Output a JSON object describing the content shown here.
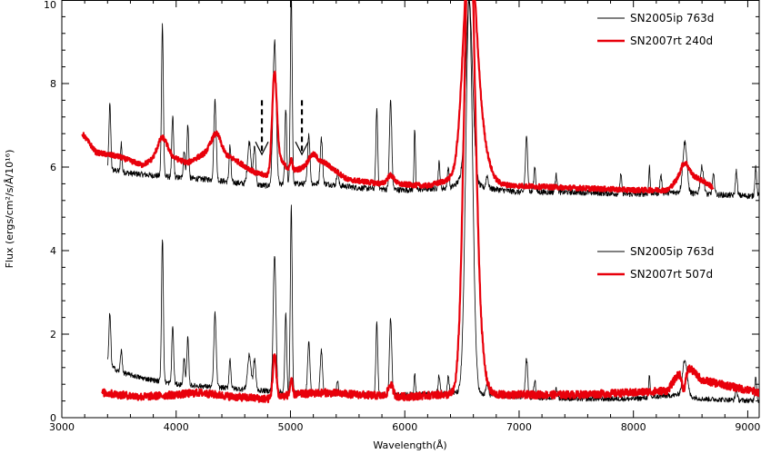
{
  "chart_data": {
    "type": "line",
    "title": "",
    "xlabel": "Wavelength(Å)",
    "ylabel": "Flux (ergs/cm²/s/Å/10¹⁶)",
    "xlim": [
      3000,
      9100
    ],
    "ylim": [
      0,
      10
    ],
    "x_ticks": [
      3000,
      4000,
      5000,
      6000,
      7000,
      8000,
      9000
    ],
    "y_ticks": [
      0,
      2,
      4,
      6,
      8,
      10
    ],
    "grid": false,
    "colors": {
      "black_series": "#000000",
      "red_series": "#e8000b"
    },
    "legends": [
      {
        "position": "top-right",
        "entries": [
          {
            "label": "SN2005ip 763d",
            "color": "#000000"
          },
          {
            "label": "SN2007rt 240d",
            "color": "#e8000b"
          }
        ]
      },
      {
        "position": "middle-right",
        "entries": [
          {
            "label": "SN2005ip 763d",
            "color": "#000000"
          },
          {
            "label": "SN2007rt 507d",
            "color": "#e8000b"
          }
        ]
      }
    ],
    "annotations": [
      {
        "type": "dashed-arrow-down",
        "x": 4750,
        "y_top": 7.6,
        "y_tip": 6.3
      },
      {
        "type": "dashed-arrow-down",
        "x": 5100,
        "y_top": 7.6,
        "y_tip": 6.3
      }
    ],
    "series": [
      {
        "color": "#000000",
        "width": 0.8,
        "baseline": [
          [
            3400,
            5.95
          ],
          [
            3600,
            5.85
          ],
          [
            4000,
            5.75
          ],
          [
            4300,
            5.7
          ],
          [
            4600,
            5.6
          ],
          [
            4800,
            5.55
          ],
          [
            5000,
            5.6
          ],
          [
            5300,
            5.6
          ],
          [
            5600,
            5.5
          ],
          [
            6000,
            5.45
          ],
          [
            6400,
            5.5
          ],
          [
            6500,
            5.7
          ],
          [
            6700,
            5.5
          ],
          [
            7000,
            5.4
          ],
          [
            7500,
            5.4
          ],
          [
            8000,
            5.35
          ],
          [
            8400,
            5.4
          ],
          [
            8600,
            5.35
          ],
          [
            9100,
            5.3
          ]
        ],
        "lines": [
          [
            3420,
            7.5,
            8
          ],
          [
            3520,
            6.6,
            6
          ],
          [
            3880,
            9.4,
            8
          ],
          [
            3970,
            7.2,
            8
          ],
          [
            4070,
            6.4,
            8
          ],
          [
            4102,
            7.0,
            8
          ],
          [
            4340,
            7.6,
            10
          ],
          [
            4471,
            6.5,
            8
          ],
          [
            4640,
            6.6,
            15
          ],
          [
            4686,
            6.5,
            10
          ],
          [
            4861,
            9.0,
            14
          ],
          [
            4959,
            7.4,
            8
          ],
          [
            5007,
            10.2,
            8
          ],
          [
            5160,
            6.8,
            10
          ],
          [
            5270,
            6.7,
            10
          ],
          [
            5412,
            5.9,
            8
          ],
          [
            5755,
            7.4,
            8
          ],
          [
            5876,
            7.6,
            10
          ],
          [
            6087,
            6.9,
            6
          ],
          [
            6300,
            6.1,
            8
          ],
          [
            6380,
            6.0,
            8
          ],
          [
            6563,
            10.0,
            30
          ],
          [
            6720,
            5.8,
            10
          ],
          [
            7065,
            6.7,
            10
          ],
          [
            7137,
            6.0,
            8
          ],
          [
            7325,
            5.8,
            10
          ],
          [
            7890,
            5.8,
            8
          ],
          [
            8140,
            6.0,
            6
          ],
          [
            8240,
            5.8,
            8
          ],
          [
            8450,
            6.6,
            18
          ],
          [
            8600,
            6.0,
            15
          ],
          [
            8700,
            5.8,
            10
          ],
          [
            8900,
            5.9,
            8
          ],
          [
            9070,
            6.0,
            8
          ]
        ],
        "noise": 0.07,
        "x_start": 3400,
        "x_end": 9100
      },
      {
        "color": "#e8000b",
        "width": 2.2,
        "baseline": [
          [
            3180,
            6.8
          ],
          [
            3300,
            6.35
          ],
          [
            3500,
            6.25
          ],
          [
            3700,
            6.05
          ],
          [
            3900,
            6.3
          ],
          [
            4100,
            6.1
          ],
          [
            4300,
            6.4
          ],
          [
            4500,
            6.2
          ],
          [
            4700,
            5.85
          ],
          [
            4800,
            5.8
          ],
          [
            4900,
            6.2
          ],
          [
            5000,
            5.9
          ],
          [
            5300,
            6.1
          ],
          [
            5500,
            5.7
          ],
          [
            5800,
            5.6
          ],
          [
            5900,
            5.6
          ],
          [
            6200,
            5.55
          ],
          [
            6400,
            5.7
          ],
          [
            6700,
            5.6
          ],
          [
            7000,
            5.55
          ],
          [
            7500,
            5.5
          ],
          [
            8000,
            5.45
          ],
          [
            8300,
            5.45
          ],
          [
            8450,
            5.9
          ],
          [
            8650,
            5.6
          ],
          [
            8700,
            5.5
          ]
        ],
        "lines": [
          [
            3880,
            6.7,
            40
          ],
          [
            4350,
            6.8,
            40
          ],
          [
            4861,
            8.3,
            20
          ],
          [
            5007,
            6.2,
            10
          ],
          [
            5200,
            6.3,
            40
          ],
          [
            5876,
            5.8,
            30
          ],
          [
            6563,
            10.0,
            55
          ],
          [
            6620,
            7.2,
            80
          ],
          [
            8450,
            6.1,
            30
          ]
        ],
        "noise": 0.06,
        "x_start": 3180,
        "x_end": 8700
      },
      {
        "color": "#000000",
        "width": 0.8,
        "baseline": [
          [
            3400,
            1.3
          ],
          [
            3500,
            1.1
          ],
          [
            3700,
            0.95
          ],
          [
            4000,
            0.8
          ],
          [
            4500,
            0.7
          ],
          [
            5000,
            0.6
          ],
          [
            5500,
            0.55
          ],
          [
            6000,
            0.55
          ],
          [
            6400,
            0.6
          ],
          [
            6700,
            0.55
          ],
          [
            7000,
            0.5
          ],
          [
            7500,
            0.45
          ],
          [
            8000,
            0.45
          ],
          [
            8400,
            0.55
          ],
          [
            8600,
            0.45
          ],
          [
            9100,
            0.4
          ]
        ],
        "lines": [
          [
            3420,
            2.5,
            8
          ],
          [
            3520,
            1.6,
            8
          ],
          [
            3880,
            4.3,
            8
          ],
          [
            3970,
            2.2,
            8
          ],
          [
            4070,
            1.4,
            8
          ],
          [
            4102,
            1.9,
            8
          ],
          [
            4340,
            2.5,
            10
          ],
          [
            4471,
            1.4,
            8
          ],
          [
            4640,
            1.5,
            15
          ],
          [
            4686,
            1.4,
            10
          ],
          [
            4861,
            3.9,
            12
          ],
          [
            4959,
            2.5,
            8
          ],
          [
            5007,
            5.1,
            8
          ],
          [
            5160,
            1.8,
            10
          ],
          [
            5270,
            1.6,
            10
          ],
          [
            5412,
            0.9,
            8
          ],
          [
            5755,
            2.3,
            8
          ],
          [
            5876,
            2.4,
            10
          ],
          [
            6087,
            1.1,
            6
          ],
          [
            6300,
            1.0,
            8
          ],
          [
            6380,
            1.0,
            8
          ],
          [
            6563,
            10.0,
            30
          ],
          [
            6720,
            0.8,
            10
          ],
          [
            7065,
            1.4,
            10
          ],
          [
            7137,
            0.9,
            8
          ],
          [
            7325,
            0.7,
            10
          ],
          [
            8140,
            1.0,
            6
          ],
          [
            8450,
            1.4,
            20
          ],
          [
            8900,
            0.7,
            8
          ],
          [
            9070,
            1.0,
            8
          ]
        ],
        "noise": 0.06,
        "x_start": 3400,
        "x_end": 9100
      },
      {
        "color": "#e8000b",
        "width": 2.2,
        "baseline": [
          [
            3350,
            0.6
          ],
          [
            3500,
            0.55
          ],
          [
            3700,
            0.5
          ],
          [
            4000,
            0.55
          ],
          [
            4200,
            0.6
          ],
          [
            4500,
            0.5
          ],
          [
            4800,
            0.45
          ],
          [
            5000,
            0.55
          ],
          [
            5300,
            0.6
          ],
          [
            5600,
            0.55
          ],
          [
            6000,
            0.5
          ],
          [
            6300,
            0.55
          ],
          [
            6700,
            0.55
          ],
          [
            7000,
            0.55
          ],
          [
            7500,
            0.55
          ],
          [
            8000,
            0.6
          ],
          [
            8300,
            0.65
          ],
          [
            8450,
            1.3
          ],
          [
            8600,
            0.9
          ],
          [
            9100,
            0.6
          ]
        ],
        "lines": [
          [
            4861,
            1.5,
            15
          ],
          [
            5007,
            0.9,
            10
          ],
          [
            5876,
            0.8,
            20
          ],
          [
            6563,
            10.0,
            45
          ],
          [
            6600,
            3.0,
            60
          ],
          [
            8440,
            0.7,
            20
          ]
        ],
        "noise": 0.09,
        "x_start": 3350,
        "x_end": 9100
      }
    ]
  }
}
